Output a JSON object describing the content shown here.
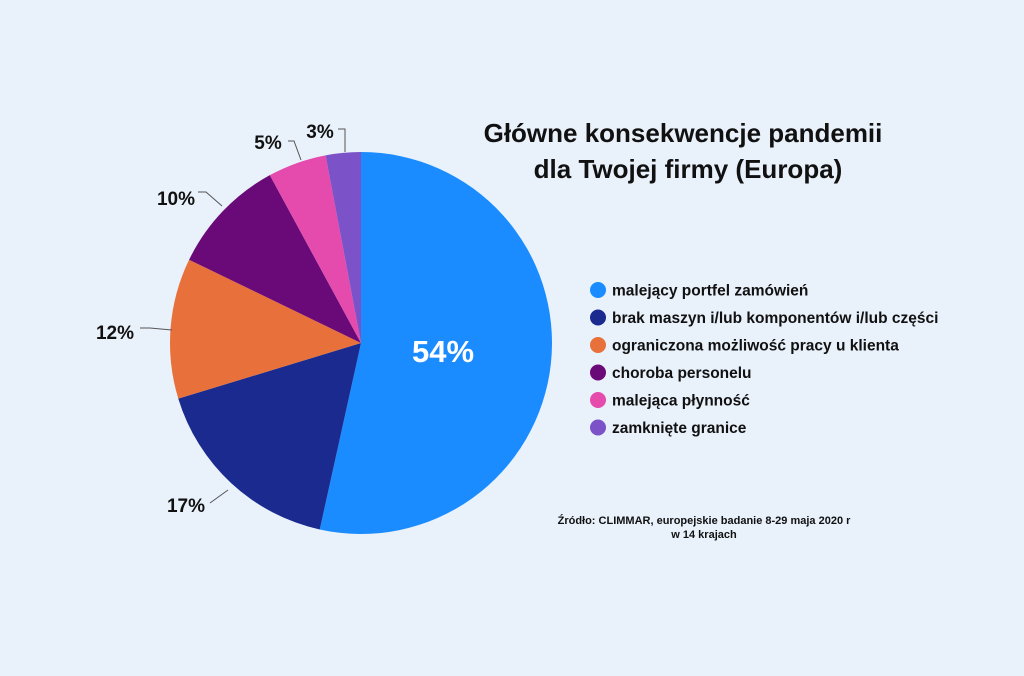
{
  "chart_data": {
    "type": "pie",
    "title": [
      "Główne konsekwencje pandemii",
      "dla Twojej firmy (Europa)"
    ],
    "slices": [
      {
        "label": "malejący portfel zamówień",
        "value": 54,
        "display": "54%",
        "color": "#1a8cff"
      },
      {
        "label": "brak maszyn i/lub komponentów i/lub części",
        "value": 17,
        "display": "17%",
        "color": "#1a2a8f"
      },
      {
        "label": "ograniczona możliwość pracy u klienta",
        "value": 12,
        "display": "12%",
        "color": "#e8703a"
      },
      {
        "label": "choroba personelu",
        "value": 10,
        "display": "10%",
        "color": "#6a0a78"
      },
      {
        "label": "malejąca płynność",
        "value": 5,
        "display": "5%",
        "color": "#e54aad"
      },
      {
        "label": "zamknięte granice",
        "value": 3,
        "display": "3%",
        "color": "#7b52c8"
      }
    ],
    "legend_position": "right",
    "source": [
      "Źródło: CLIMMAR, europejskie badanie 8-29 maja 2020 r",
      "w 14 krajach"
    ]
  }
}
